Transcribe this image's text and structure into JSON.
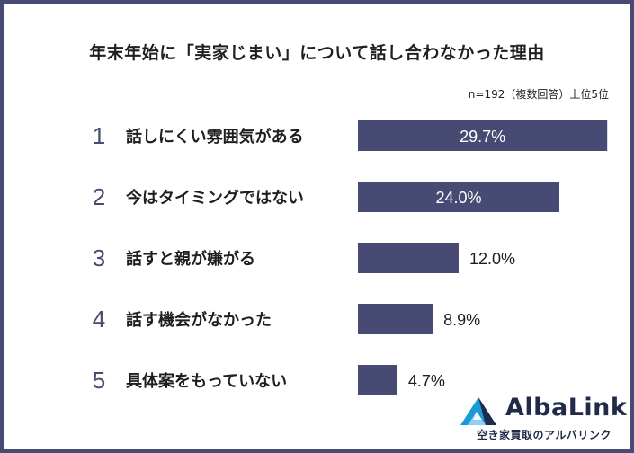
{
  "title": "年末年始に「実家じまい」について話し合わなかった理由",
  "note": "n=192（複数回答）上位5位",
  "chart_data": {
    "type": "bar",
    "orientation": "horizontal",
    "categories": [
      "話しにくい雰囲気がある",
      "今はタイミングではない",
      "話すと親が嫌がる",
      "話す機会がなかった",
      "具体案をもっていない"
    ],
    "ranks": [
      "1",
      "2",
      "3",
      "4",
      "5"
    ],
    "values": [
      29.7,
      24.0,
      12.0,
      8.9,
      4.7
    ],
    "value_labels": [
      "29.7%",
      "24.0%",
      "12.0%",
      "8.9%",
      "4.7%"
    ],
    "unit": "%",
    "xlim": [
      0,
      30
    ],
    "bar_color": "#474a72",
    "rank_color": "#474a72",
    "label_inside_min": 20
  },
  "brand": {
    "name": "AlbaLink",
    "tagline": "空き家買取のアルバリンク",
    "logo_icon": "triangle-mountain-icon",
    "colors": {
      "dark": "#222a4a",
      "blue": "#1a9ad6",
      "light": "#8fd0ee"
    }
  }
}
